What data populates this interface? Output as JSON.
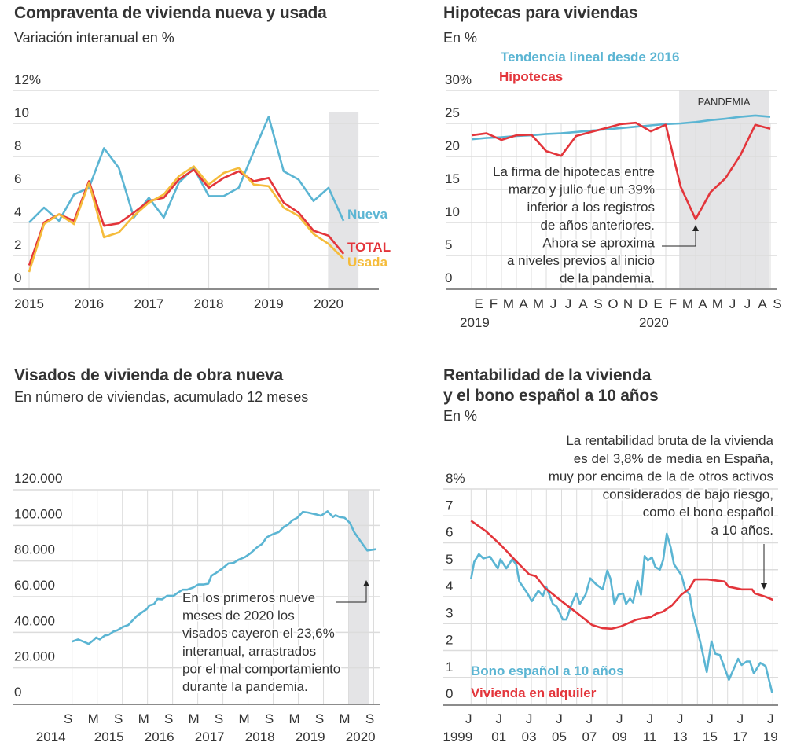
{
  "colors": {
    "blue": "#5bb5d3",
    "red": "#e3353b",
    "yellow": "#f5bc3b",
    "band": "#e4e4e6",
    "grid": "#dcdcdc",
    "axis": "#666666",
    "text": "#333333"
  },
  "chart_data": [
    {
      "id": "compraventa",
      "type": "line",
      "title": "Compraventa de vivienda nueva y usada",
      "subtitle": "Variación interanual en %",
      "xlabel": "",
      "ylabel": "",
      "ylim": [
        0,
        12
      ],
      "yticks": [
        0,
        2,
        4,
        6,
        8,
        10,
        12
      ],
      "ytick_labels": [
        "0",
        "2",
        "4",
        "6",
        "8",
        "10",
        "12%"
      ],
      "xticks": [
        2015,
        2016,
        2017,
        2018,
        2019,
        2020
      ],
      "xtick_labels": [
        "2015",
        "2016",
        "2017",
        "2018",
        "2019",
        "2020"
      ],
      "xlim": [
        2015,
        2020.75
      ],
      "grid": true,
      "shaded_region": {
        "from": 2020,
        "to": 2020.5,
        "label": ""
      },
      "x": [
        2015,
        2015.25,
        2015.5,
        2015.75,
        2016,
        2016.25,
        2016.5,
        2016.75,
        2017,
        2017.25,
        2017.5,
        2017.75,
        2018,
        2018.25,
        2018.5,
        2018.75,
        2019,
        2019.25,
        2019.5,
        2019.75,
        2020,
        2020.25
      ],
      "series": [
        {
          "name": "Nueva",
          "color_key": "blue",
          "values": [
            4.0,
            4.9,
            4.1,
            5.7,
            6.1,
            8.5,
            7.3,
            4.3,
            5.5,
            4.3,
            6.4,
            7.3,
            5.6,
            5.6,
            6.1,
            8.3,
            10.4,
            7.1,
            6.6,
            5.3,
            6.1,
            4.1
          ]
        },
        {
          "name": "TOTAL",
          "color_key": "red",
          "values": [
            1.4,
            4.0,
            4.5,
            4.1,
            6.5,
            3.8,
            3.95,
            4.6,
            5.3,
            5.5,
            6.6,
            7.2,
            6.1,
            6.7,
            7.1,
            6.5,
            6.7,
            5.2,
            4.6,
            3.5,
            3.2,
            2.1
          ]
        },
        {
          "name": "Usada",
          "color_key": "yellow",
          "values": [
            1.0,
            3.9,
            4.5,
            3.9,
            6.4,
            3.1,
            3.4,
            4.4,
            5.2,
            5.7,
            6.8,
            7.4,
            6.3,
            7.0,
            7.3,
            6.3,
            6.2,
            4.9,
            4.4,
            3.3,
            2.7,
            1.8
          ]
        }
      ],
      "legend": "end-of-line labels"
    },
    {
      "id": "hipotecas",
      "type": "line",
      "title": "Hipotecas para viviendas",
      "subtitle": "En %",
      "ylim": [
        0,
        30
      ],
      "yticks": [
        0,
        5,
        10,
        15,
        20,
        25,
        30
      ],
      "ytick_labels": [
        "0",
        "5",
        "10",
        "15",
        "20",
        "25",
        "30%"
      ],
      "categories": [
        "E",
        "F",
        "M",
        "A",
        "M",
        "J",
        "J",
        "A",
        "S",
        "O",
        "N",
        "D",
        "E",
        "F",
        "M",
        "A",
        "M",
        "J",
        "J",
        "A",
        "S"
      ],
      "year_labels": [
        {
          "index": 0,
          "label": "2019"
        },
        {
          "index": 12,
          "label": "2020"
        }
      ],
      "grid": true,
      "shaded_region": {
        "from_index": 13.9,
        "to_index": 19.9,
        "label": "PANDEMIA"
      },
      "series": [
        {
          "name": "Tendencia lineal desde 2016",
          "color_key": "blue",
          "values": [
            22.6,
            22.8,
            22.9,
            23.1,
            23.2,
            23.4,
            23.5,
            23.7,
            23.9,
            24.1,
            24.3,
            24.5,
            24.7,
            24.9,
            25.0,
            25.2,
            25.5,
            25.7,
            26.0,
            26.2,
            26.0
          ]
        },
        {
          "name": "Hipotecas",
          "color_key": "red",
          "values": [
            23.2,
            23.5,
            22.5,
            23.2,
            23.3,
            20.8,
            20.1,
            23.1,
            23.7,
            24.3,
            24.9,
            25.1,
            23.8,
            24.8,
            15.4,
            10.5,
            14.6,
            16.7,
            20.2,
            24.8,
            24.2
          ]
        }
      ],
      "legend": "top-left",
      "annotation": {
        "lines": [
          "La firma de hipotecas entre",
          "marzo y julio fue un 39%",
          "inferior a los registros",
          "de años anteriores.",
          "Ahora se aproxima",
          "a niveles previos al inicio",
          "de la pandemia."
        ],
        "points_to_index": 15
      }
    },
    {
      "id": "visados",
      "type": "line",
      "title": "Visados de vivienda de obra nueva",
      "subtitle": "En número de viviendas, acumulado 12 meses",
      "ylim": [
        0,
        120000
      ],
      "yticks": [
        0,
        20000,
        40000,
        60000,
        80000,
        100000,
        120000
      ],
      "ytick_labels": [
        "0",
        "20.000",
        "40.000",
        "60.000",
        "80.000",
        "100.000",
        "120.000"
      ],
      "xticks": [
        2014.67,
        2015.17,
        2015.67,
        2016.17,
        2016.67,
        2017.17,
        2017.67,
        2018.17,
        2018.67,
        2019.17,
        2019.67,
        2020.17,
        2020.67
      ],
      "xtick_labels": [
        "S",
        "M",
        "S",
        "M",
        "S",
        "M",
        "S",
        "M",
        "S",
        "M",
        "S",
        "M",
        "S"
      ],
      "year_labels": [
        "2014",
        "2015",
        "2016",
        "2017",
        "2018",
        "2019",
        "2020"
      ],
      "grid": true,
      "shaded_region": {
        "from": 2020.17,
        "to": 2020.58
      },
      "series": [
        {
          "name": "Visados",
          "color_key": "blue",
          "x": [
            2014.67,
            2014.79,
            2014.89,
            2015.0,
            2015.1,
            2015.15,
            2015.22,
            2015.32,
            2015.4,
            2015.49,
            2015.57,
            2015.68,
            2015.79,
            2015.86,
            2015.96,
            2016.07,
            2016.15,
            2016.21,
            2016.3,
            2016.37,
            2016.46,
            2016.56,
            2016.69,
            2016.77,
            2016.87,
            2016.96,
            2017.08,
            2017.18,
            2017.28,
            2017.38,
            2017.44,
            2017.54,
            2017.65,
            2017.78,
            2017.88,
            2017.98,
            2018.11,
            2018.22,
            2018.35,
            2018.45,
            2018.54,
            2018.66,
            2018.78,
            2018.88,
            2018.97,
            2019.05,
            2019.15,
            2019.26,
            2019.36,
            2019.52,
            2019.62,
            2019.75,
            2019.86,
            2019.91,
            2019.99,
            2020.09,
            2020.2,
            2020.28,
            2020.41,
            2020.54,
            2020.62,
            2020.71
          ],
          "values": [
            34800,
            36000,
            34800,
            33500,
            35700,
            37100,
            36000,
            38200,
            38600,
            40400,
            41100,
            43000,
            44100,
            46300,
            49200,
            51400,
            52900,
            55100,
            55800,
            58700,
            58500,
            60500,
            60500,
            62100,
            63900,
            63900,
            65100,
            66800,
            66800,
            67300,
            71700,
            73400,
            75600,
            78600,
            78900,
            80700,
            82200,
            84400,
            87700,
            89600,
            93300,
            95000,
            96200,
            99100,
            100600,
            102800,
            104300,
            107600,
            107200,
            106200,
            105400,
            107900,
            104700,
            105700,
            104700,
            104300,
            101300,
            96200,
            91000,
            85900,
            86200,
            86600
          ]
        }
      ],
      "annotation": {
        "lines": [
          "En los primeros nueve",
          "meses de 2020 los",
          "visados cayeron el 23,6%",
          "interanual, arrastrados",
          "por el mal comportamiento",
          "durante la pandemia."
        ]
      }
    },
    {
      "id": "rentabilidad",
      "type": "line",
      "title": "Rentabilidad de la vivienda",
      "title_line2": "y el bono español a 10 años",
      "subtitle": "En %",
      "ylim": [
        0,
        8
      ],
      "yticks": [
        0,
        1,
        2,
        3,
        4,
        5,
        6,
        7,
        8
      ],
      "ytick_labels": [
        "0",
        "1",
        "2",
        "3",
        "4",
        "5",
        "6",
        "7",
        "8%"
      ],
      "xticks": [
        1999.5,
        2001.5,
        2003.5,
        2005.5,
        2007.5,
        2009.5,
        2011.5,
        2013.5,
        2015.5,
        2017.5,
        2019.5
      ],
      "xtick_labels": [
        "J",
        "J",
        "J",
        "J",
        "J",
        "J",
        "J",
        "J",
        "J",
        "J",
        "J"
      ],
      "year_labels": [
        "1999",
        "01",
        "03",
        "05",
        "07",
        "09",
        "11",
        "13",
        "15",
        "17",
        "19"
      ],
      "grid": true,
      "series": [
        {
          "name": "Bono español a 10 años",
          "color_key": "blue",
          "x": [
            1999.5,
            1999.71,
            2000.02,
            2000.32,
            2000.75,
            2001.27,
            2001.45,
            2001.84,
            2002.23,
            2002.49,
            2002.7,
            2003.18,
            2003.53,
            2003.96,
            2004.26,
            2004.48,
            2004.92,
            2005.18,
            2005.58,
            2005.82,
            2006.22,
            2006.48,
            2006.71,
            2007.09,
            2007.4,
            2007.78,
            2008.22,
            2008.53,
            2008.74,
            2009.0,
            2009.26,
            2009.57,
            2009.77,
            2010.03,
            2010.23,
            2010.53,
            2010.76,
            2011.0,
            2011.22,
            2011.48,
            2011.71,
            2012.01,
            2012.23,
            2012.47,
            2012.73,
            2012.95,
            2013.44,
            2013.7,
            2013.99,
            2014.17,
            2014.69,
            2015.12,
            2015.43,
            2015.68,
            2015.99,
            2016.59,
            2017.2,
            2017.43,
            2017.76,
            2017.98,
            2018.24,
            2018.67,
            2019.02,
            2019.46
          ],
          "values": [
            4.66,
            5.29,
            5.58,
            5.42,
            5.49,
            5.05,
            5.39,
            5.05,
            5.39,
            5.2,
            4.56,
            4.17,
            3.83,
            4.22,
            4.03,
            4.37,
            3.73,
            3.63,
            3.15,
            3.15,
            3.8,
            4.12,
            3.73,
            4.07,
            4.68,
            4.46,
            4.27,
            4.97,
            4.66,
            3.73,
            4.07,
            4.12,
            3.73,
            3.93,
            3.78,
            4.58,
            4.07,
            5.51,
            5.34,
            5.46,
            5.1,
            5.0,
            5.36,
            6.34,
            5.83,
            5.2,
            4.8,
            4.27,
            4.07,
            3.44,
            2.32,
            1.2,
            2.34,
            1.88,
            1.83,
            0.91,
            1.69,
            1.46,
            1.59,
            1.59,
            1.15,
            1.54,
            1.42,
            0.42
          ]
        },
        {
          "name": "Vivienda en alquiler",
          "color_key": "red",
          "x": [
            1999.5,
            2000.49,
            2001.45,
            2002.4,
            2003.35,
            2003.79,
            2004.4,
            2005.44,
            2006.48,
            2007.52,
            2008.22,
            2008.83,
            2009.44,
            2010.48,
            2011.43,
            2011.78,
            2012.21,
            2012.82,
            2013.43,
            2013.95,
            2014.33,
            2015.17,
            2016.3,
            2016.56,
            2017.43,
            2018.13,
            2018.3,
            2018.99,
            2019.51
          ],
          "values": [
            6.82,
            6.43,
            5.93,
            5.37,
            4.83,
            4.76,
            4.32,
            3.86,
            3.41,
            2.95,
            2.83,
            2.81,
            2.9,
            3.15,
            3.25,
            3.37,
            3.44,
            3.68,
            4.07,
            4.29,
            4.64,
            4.64,
            4.56,
            4.37,
            4.27,
            4.27,
            4.12,
            4.0,
            3.88
          ]
        }
      ],
      "legend": "bottom-left",
      "annotation": {
        "lines": [
          "La rentabilidad bruta de la vivienda",
          "es del 3,8% de media en España,",
          "muy por encima de la de otros activos",
          "considerados de bajo riesgo,",
          "como el bono español",
          "a 10 años."
        ]
      }
    }
  ]
}
